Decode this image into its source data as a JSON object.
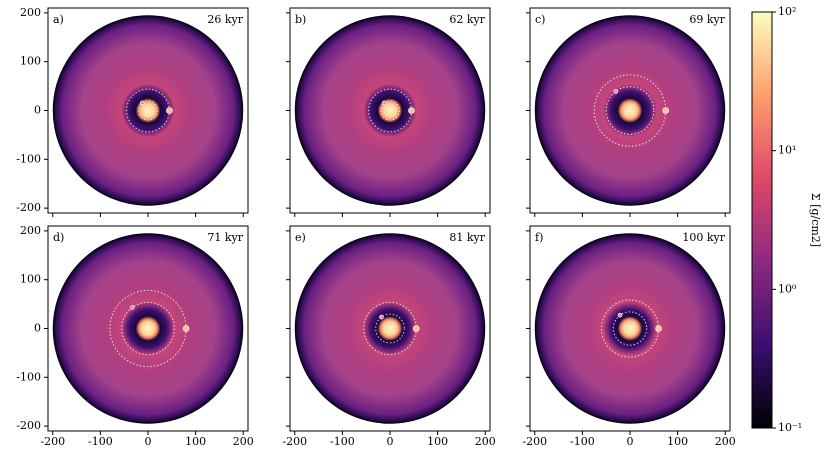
{
  "chart_data": [
    {
      "type": "disk",
      "panel_label": "a)",
      "time_label": "26 kyr",
      "xlim": [
        -210,
        210
      ],
      "ylim": [
        -210,
        210
      ],
      "xticks": [
        -200,
        -100,
        0,
        100,
        200
      ],
      "yticks": [
        -200,
        -100,
        0,
        100,
        200
      ]
    },
    {
      "type": "disk",
      "panel_label": "b)",
      "time_label": "62 kyr",
      "xlim": [
        -210,
        210
      ],
      "ylim": [
        -210,
        210
      ],
      "xticks": [
        -200,
        -100,
        0,
        100,
        200
      ],
      "yticks": [
        -200,
        -100,
        0,
        100,
        200
      ]
    },
    {
      "type": "disk",
      "panel_label": "c)",
      "time_label": "69 kyr",
      "xlim": [
        -210,
        210
      ],
      "ylim": [
        -210,
        210
      ],
      "xticks": [
        -200,
        -100,
        0,
        100,
        200
      ],
      "yticks": [
        -200,
        -100,
        0,
        100,
        200
      ]
    },
    {
      "type": "disk",
      "panel_label": "d)",
      "time_label": "71 kyr",
      "xlim": [
        -210,
        210
      ],
      "ylim": [
        -210,
        210
      ],
      "xticks": [
        -200,
        -100,
        0,
        100,
        200
      ],
      "yticks": [
        -200,
        -100,
        0,
        100,
        200
      ]
    },
    {
      "type": "disk",
      "panel_label": "e)",
      "time_label": "81 kyr",
      "xlim": [
        -210,
        210
      ],
      "ylim": [
        -210,
        210
      ],
      "xticks": [
        -200,
        -100,
        0,
        100,
        200
      ],
      "yticks": [
        -200,
        -100,
        0,
        100,
        200
      ]
    },
    {
      "type": "disk",
      "panel_label": "f)",
      "time_label": "100 kyr",
      "xlim": [
        -210,
        210
      ],
      "ylim": [
        -210,
        210
      ],
      "xticks": [
        -200,
        -100,
        0,
        100,
        200
      ],
      "yticks": [
        -200,
        -100,
        0,
        100,
        200
      ]
    },
    {
      "type": "colorbar",
      "label": "Σ [g/cm2]",
      "log_scale": true,
      "ylim": [
        0.1,
        100
      ],
      "yticks": [
        {
          "value": 0.1,
          "label": "10⁻¹"
        },
        {
          "value": 1,
          "label": "10⁰"
        },
        {
          "value": 10,
          "label": "10¹"
        },
        {
          "value": 100,
          "label": "10²"
        }
      ]
    }
  ]
}
